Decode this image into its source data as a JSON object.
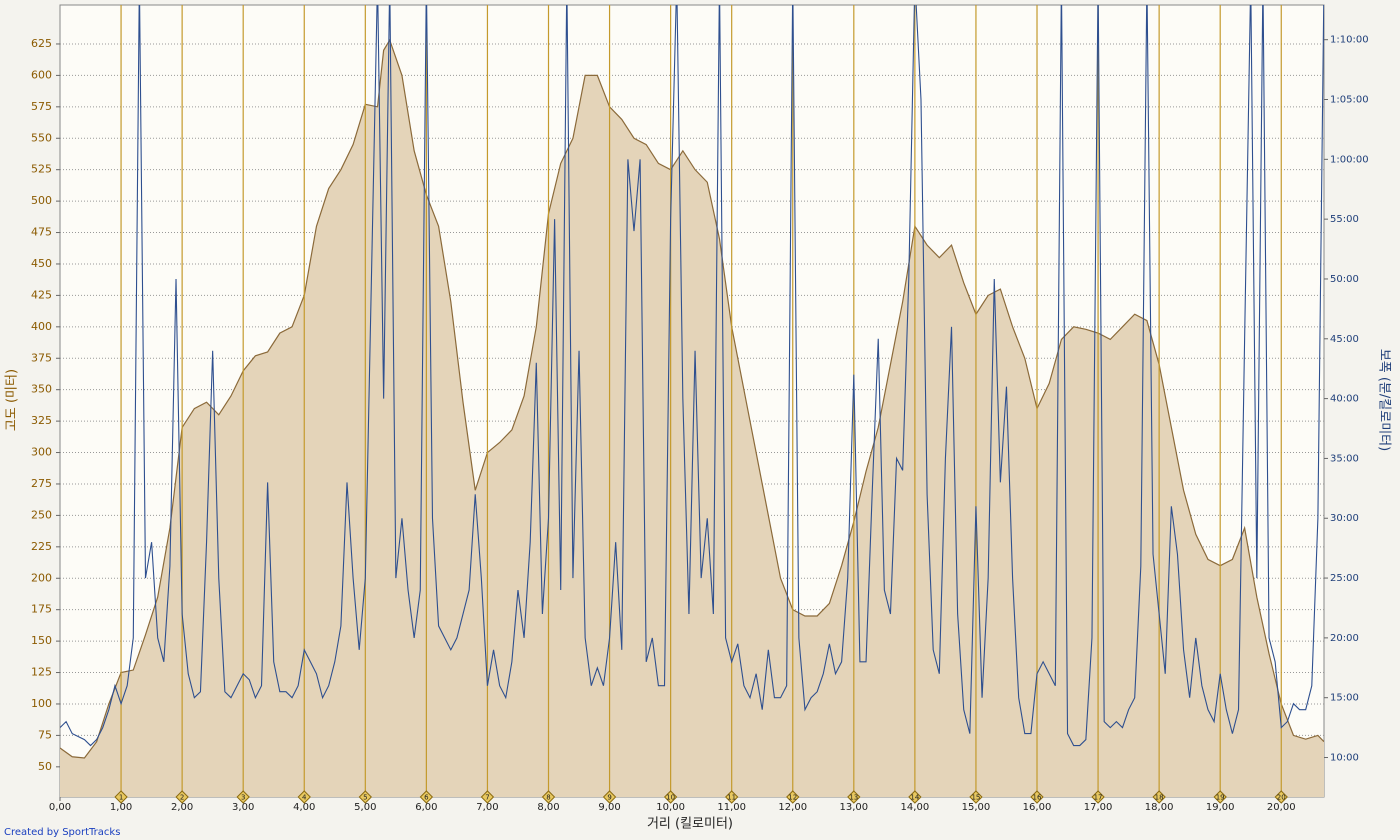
{
  "chart_data": {
    "type": "area",
    "x_label": "거리 (킬로미터)",
    "y_label": "고도 (미터)",
    "y2_label": "보폭 (분/킬로미터)",
    "credit": "Created by SportTracks",
    "grid": true,
    "xlim": [
      0,
      20.7
    ],
    "xticks": [
      {
        "value": 0,
        "label": "0,00"
      },
      {
        "value": 1,
        "label": "1,00"
      },
      {
        "value": 2,
        "label": "2,00"
      },
      {
        "value": 3,
        "label": "3,00"
      },
      {
        "value": 4,
        "label": "4,00"
      },
      {
        "value": 5,
        "label": "5,00"
      },
      {
        "value": 6,
        "label": "6,00"
      },
      {
        "value": 7,
        "label": "7,00"
      },
      {
        "value": 8,
        "label": "8,00"
      },
      {
        "value": 9,
        "label": "9,00"
      },
      {
        "value": 10,
        "label": "10,00"
      },
      {
        "value": 11,
        "label": "11,00"
      },
      {
        "value": 12,
        "label": "12,00"
      },
      {
        "value": 13,
        "label": "13,00"
      },
      {
        "value": 14,
        "label": "14,00"
      },
      {
        "value": 15,
        "label": "15,00"
      },
      {
        "value": 16,
        "label": "16,00"
      },
      {
        "value": 17,
        "label": "17,00"
      },
      {
        "value": 18,
        "label": "18,00"
      },
      {
        "value": 19,
        "label": "19,00"
      },
      {
        "value": 20,
        "label": "20,00"
      }
    ],
    "ylim": [
      26,
      656
    ],
    "yticks": [
      50,
      75,
      100,
      125,
      150,
      175,
      200,
      225,
      250,
      275,
      300,
      325,
      350,
      375,
      400,
      425,
      450,
      475,
      500,
      525,
      550,
      575,
      600,
      625
    ],
    "y2lim": [
      6.7,
      72.9
    ],
    "y2ticks": [
      {
        "value": 10,
        "label": "10:00"
      },
      {
        "value": 15,
        "label": "15:00"
      },
      {
        "value": 20,
        "label": "20:00"
      },
      {
        "value": 25,
        "label": "25:00"
      },
      {
        "value": 30,
        "label": "30:00"
      },
      {
        "value": 35,
        "label": "35:00"
      },
      {
        "value": 40,
        "label": "40:00"
      },
      {
        "value": 45,
        "label": "45:00"
      },
      {
        "value": 50,
        "label": "50:00"
      },
      {
        "value": 55,
        "label": "55:00"
      },
      {
        "value": 60,
        "label": "1:00:00"
      },
      {
        "value": 65,
        "label": "1:05:00"
      },
      {
        "value": 70,
        "label": "1:10:00"
      }
    ],
    "markers": [
      1,
      2,
      3,
      4,
      5,
      6,
      7,
      8,
      9,
      10,
      11,
      12,
      13,
      14,
      15,
      16,
      17,
      18,
      19,
      20
    ],
    "marker_color": "#c49a2c",
    "series": [
      {
        "type": "area",
        "color": "#8b6a3a",
        "fill": "#e4d4b9",
        "x": [
          0,
          0.2,
          0.4,
          0.6,
          0.8,
          1,
          1.2,
          1.4,
          1.6,
          1.8,
          2,
          2.2,
          2.4,
          2.6,
          2.8,
          3,
          3.2,
          3.4,
          3.6,
          3.8,
          4,
          4.2,
          4.4,
          4.6,
          4.8,
          5,
          5.2,
          5.3,
          5.4,
          5.6,
          5.8,
          6,
          6.2,
          6.4,
          6.6,
          6.8,
          7,
          7.2,
          7.4,
          7.6,
          7.8,
          8,
          8.2,
          8.4,
          8.6,
          8.8,
          9,
          9.2,
          9.4,
          9.6,
          9.8,
          10,
          10.2,
          10.4,
          10.6,
          10.8,
          11,
          11.2,
          11.4,
          11.6,
          11.8,
          12,
          12.2,
          12.4,
          12.6,
          12.8,
          13,
          13.2,
          13.4,
          13.6,
          13.8,
          14,
          14.2,
          14.4,
          14.6,
          14.8,
          15,
          15.2,
          15.4,
          15.6,
          15.8,
          16,
          16.2,
          16.4,
          16.6,
          16.8,
          17,
          17.2,
          17.4,
          17.6,
          17.8,
          18,
          18.2,
          18.4,
          18.6,
          18.8,
          19,
          19.2,
          19.4,
          19.6,
          19.8,
          20,
          20.2,
          20.4,
          20.6,
          20.7
        ],
        "values": [
          65,
          58,
          57,
          70,
          100,
          125,
          127,
          155,
          185,
          240,
          320,
          335,
          340,
          330,
          345,
          365,
          377,
          380,
          395,
          400,
          425,
          480,
          510,
          525,
          545,
          577,
          575,
          620,
          628,
          600,
          540,
          505,
          480,
          420,
          340,
          270,
          300,
          308,
          318,
          345,
          400,
          490,
          530,
          550,
          600,
          600,
          575,
          565,
          550,
          545,
          530,
          525,
          540,
          525,
          515,
          470,
          400,
          350,
          300,
          250,
          200,
          175,
          170,
          170,
          180,
          210,
          245,
          285,
          320,
          370,
          420,
          480,
          465,
          455,
          465,
          435,
          410,
          425,
          430,
          400,
          375,
          335,
          355,
          390,
          400,
          398,
          395,
          390,
          400,
          410,
          405,
          370,
          320,
          270,
          235,
          215,
          210,
          215,
          240,
          185,
          140,
          100,
          75,
          72,
          75,
          70
        ]
      },
      {
        "type": "line",
        "axis": "y2",
        "color": "#2e4f8f",
        "x": [
          0,
          0.1,
          0.2,
          0.4,
          0.5,
          0.6,
          0.7,
          0.8,
          0.9,
          1,
          1.1,
          1.2,
          1.3,
          1.4,
          1.5,
          1.6,
          1.7,
          1.8,
          1.9,
          2,
          2.1,
          2.2,
          2.3,
          2.4,
          2.5,
          2.6,
          2.7,
          2.8,
          2.9,
          3,
          3.1,
          3.2,
          3.3,
          3.4,
          3.5,
          3.6,
          3.7,
          3.8,
          3.9,
          4,
          4.1,
          4.2,
          4.3,
          4.4,
          4.5,
          4.6,
          4.7,
          4.8,
          4.9,
          5,
          5.1,
          5.2,
          5.3,
          5.4,
          5.5,
          5.6,
          5.7,
          5.8,
          5.9,
          6,
          6.1,
          6.2,
          6.3,
          6.4,
          6.5,
          6.6,
          6.7,
          6.8,
          6.9,
          7,
          7.1,
          7.2,
          7.3,
          7.4,
          7.5,
          7.6,
          7.7,
          7.8,
          7.9,
          8,
          8.1,
          8.2,
          8.3,
          8.4,
          8.5,
          8.6,
          8.7,
          8.8,
          8.9,
          9,
          9.1,
          9.2,
          9.3,
          9.4,
          9.5,
          9.6,
          9.7,
          9.8,
          9.9,
          10,
          10.1,
          10.2,
          10.3,
          10.4,
          10.5,
          10.6,
          10.7,
          10.8,
          10.9,
          11,
          11.1,
          11.2,
          11.3,
          11.4,
          11.5,
          11.6,
          11.7,
          11.8,
          11.9,
          12,
          12.1,
          12.2,
          12.3,
          12.4,
          12.5,
          12.6,
          12.7,
          12.8,
          12.9,
          13,
          13.1,
          13.2,
          13.3,
          13.4,
          13.5,
          13.6,
          13.7,
          13.8,
          13.9,
          14,
          14.1,
          14.2,
          14.3,
          14.4,
          14.5,
          14.6,
          14.7,
          14.8,
          14.9,
          15,
          15.1,
          15.2,
          15.3,
          15.4,
          15.5,
          15.6,
          15.7,
          15.8,
          15.9,
          16,
          16.1,
          16.2,
          16.3,
          16.4,
          16.5,
          16.6,
          16.7,
          16.8,
          16.9,
          17,
          17.1,
          17.2,
          17.3,
          17.4,
          17.5,
          17.6,
          17.7,
          17.8,
          17.9,
          18,
          18.1,
          18.2,
          18.3,
          18.4,
          18.5,
          18.6,
          18.7,
          18.8,
          18.9,
          19,
          19.1,
          19.2,
          19.3,
          19.4,
          19.5,
          19.6,
          19.7,
          19.8,
          19.9,
          20,
          20.1,
          20.2,
          20.3,
          20.4,
          20.5,
          20.6,
          20.7
        ],
        "values": [
          12.5,
          13,
          12,
          11.5,
          11,
          11.5,
          12.5,
          14,
          16,
          14.5,
          16,
          20,
          75,
          25,
          28,
          20,
          18,
          26,
          50,
          22,
          17,
          15,
          15.5,
          28,
          44,
          25,
          15.5,
          15,
          16,
          17,
          16.5,
          15,
          16,
          33,
          18,
          15.5,
          15.5,
          15,
          16,
          19,
          18,
          17,
          15,
          16,
          18,
          21,
          33,
          25,
          19,
          25,
          50,
          75,
          40,
          75,
          25,
          30,
          24,
          20,
          24,
          75,
          30,
          21,
          20,
          19,
          20,
          22,
          24,
          32,
          25,
          16,
          19,
          16,
          15,
          18,
          24,
          20,
          28,
          43,
          22,
          30,
          55,
          24,
          75,
          25,
          44,
          20,
          16,
          17.5,
          16,
          20,
          28,
          19,
          60,
          54,
          60,
          18,
          20,
          16,
          16,
          55,
          75,
          40,
          22,
          44,
          25,
          30,
          22,
          75,
          20,
          18,
          19.5,
          16,
          15,
          17,
          14,
          19,
          15,
          15,
          16,
          75,
          20,
          14,
          15,
          15.5,
          17,
          19.5,
          17,
          18,
          25,
          42,
          18,
          18,
          32,
          45,
          24,
          22,
          35,
          34,
          50,
          75,
          65,
          32,
          19,
          17,
          35,
          46,
          22,
          14,
          12,
          31,
          15,
          25,
          50,
          33,
          41,
          25,
          15,
          12,
          12,
          17,
          18,
          17,
          16,
          75,
          12,
          11,
          11,
          11.5,
          20,
          75,
          13,
          12.5,
          13,
          12.5,
          14,
          15,
          26,
          75,
          27,
          22,
          17,
          31,
          27,
          19,
          15,
          20,
          16,
          14,
          13,
          17,
          14,
          12,
          14,
          45,
          75,
          25,
          75,
          20,
          18,
          12.5,
          13,
          14.5,
          14,
          14,
          16,
          30,
          75
        ]
      }
    ]
  }
}
